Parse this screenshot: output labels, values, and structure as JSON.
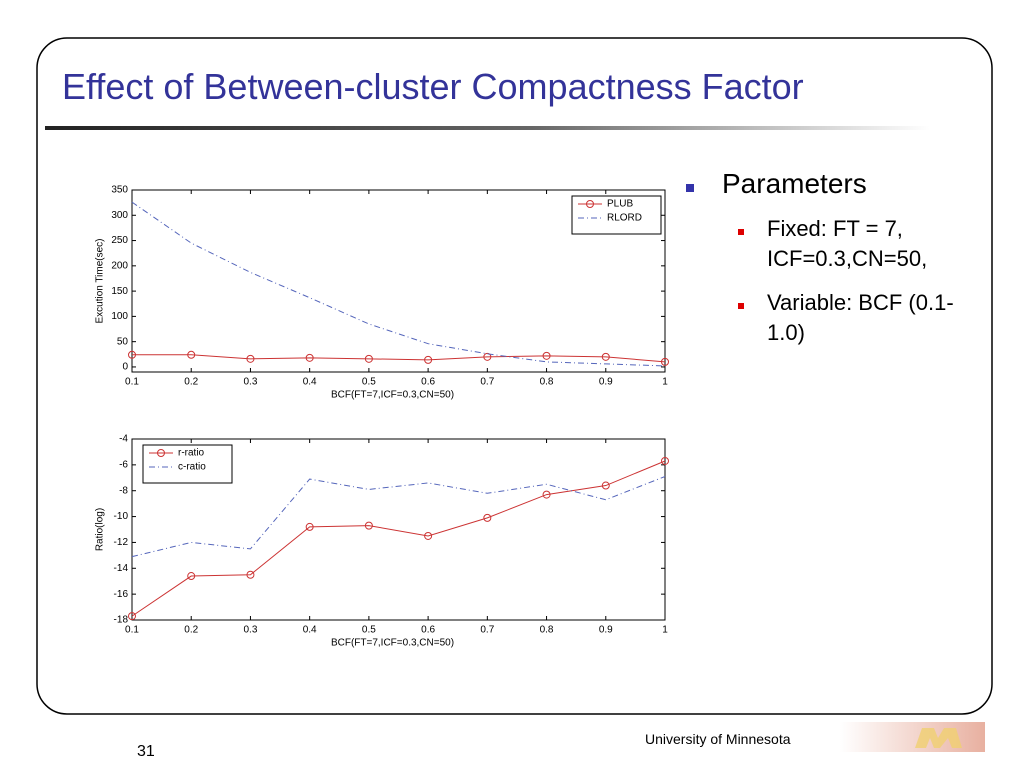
{
  "title": "Effect of Between-cluster Compactness Factor",
  "bullets": [
    {
      "text": "Parameters",
      "sub": [
        "Fixed: FT = 7, ICF=0.3,CN=50,",
        "Variable: BCF (0.1-1.0)"
      ]
    }
  ],
  "footer": {
    "organization": "University of Minnesota",
    "page_number": 31
  },
  "chart_data": [
    {
      "type": "line",
      "x_label": "BCF(FT=7,ICF=0.3,CN=50)",
      "y_label": "Excution Time(sec)",
      "x": [
        0.1,
        0.2,
        0.3,
        0.4,
        0.5,
        0.6,
        0.7,
        0.8,
        0.9,
        1
      ],
      "xlim": [
        0.1,
        1
      ],
      "xticks": [
        0.1,
        0.2,
        0.3,
        0.4,
        0.5,
        0.6,
        0.7,
        0.8,
        0.9,
        1
      ],
      "ylim": [
        -10,
        350
      ],
      "yticks": [
        0,
        50,
        100,
        150,
        200,
        250,
        300,
        350
      ],
      "legend": "upper right",
      "grid": false,
      "series": [
        {
          "name": "PLUB",
          "color": "#cc3333",
          "marker": "circle",
          "dash": "solid",
          "values": [
            24,
            24,
            16,
            18,
            16,
            14,
            20,
            22,
            20,
            10
          ]
        },
        {
          "name": "RLORD",
          "color": "#5566bb",
          "marker": "none",
          "dash": "dashdot",
          "values": [
            326,
            245,
            187,
            137,
            85,
            46,
            26,
            10,
            6,
            2
          ]
        }
      ]
    },
    {
      "type": "line",
      "x_label": "BCF(FT=7,ICF=0.3,CN=50)",
      "y_label": "Ratio(log)",
      "x": [
        0.1,
        0.2,
        0.3,
        0.4,
        0.5,
        0.6,
        0.7,
        0.8,
        0.9,
        1
      ],
      "xlim": [
        0.1,
        1
      ],
      "xticks": [
        0.1,
        0.2,
        0.3,
        0.4,
        0.5,
        0.6,
        0.7,
        0.8,
        0.9,
        1
      ],
      "ylim": [
        -18,
        -4
      ],
      "yticks": [
        -18,
        -16,
        -14,
        -12,
        -10,
        -8,
        -6,
        -4
      ],
      "legend": "upper left",
      "grid": false,
      "series": [
        {
          "name": "r-ratio",
          "color": "#cc3333",
          "marker": "circle",
          "dash": "solid",
          "values": [
            -17.7,
            -14.6,
            -14.5,
            -10.8,
            -10.7,
            -11.5,
            -10.1,
            -8.3,
            -7.6,
            -5.7
          ]
        },
        {
          "name": "c-ratio",
          "color": "#5566bb",
          "marker": "none",
          "dash": "dashdot",
          "values": [
            -13.1,
            -12,
            -12.5,
            -7.1,
            -7.9,
            -7.4,
            -8.2,
            -7.5,
            -8.7,
            -6.9
          ]
        }
      ]
    }
  ]
}
